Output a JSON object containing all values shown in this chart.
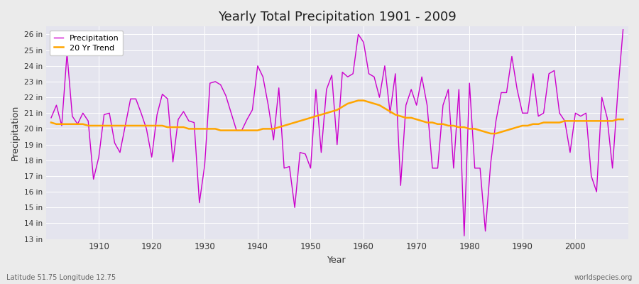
{
  "title": "Yearly Total Precipitation 1901 - 2009",
  "xlabel": "Year",
  "ylabel": "Precipitation",
  "fig_facecolor": "#f0f0f0",
  "plot_facecolor": "#e8e8f0",
  "precip_color": "#cc00cc",
  "trend_color": "#ffa500",
  "years": [
    1901,
    1902,
    1903,
    1904,
    1905,
    1906,
    1907,
    1908,
    1909,
    1910,
    1911,
    1912,
    1913,
    1914,
    1915,
    1916,
    1917,
    1918,
    1919,
    1920,
    1921,
    1922,
    1923,
    1924,
    1925,
    1926,
    1927,
    1928,
    1929,
    1930,
    1931,
    1932,
    1933,
    1934,
    1935,
    1936,
    1937,
    1938,
    1939,
    1940,
    1941,
    1942,
    1943,
    1944,
    1945,
    1946,
    1947,
    1948,
    1949,
    1950,
    1951,
    1952,
    1953,
    1954,
    1955,
    1956,
    1957,
    1958,
    1959,
    1960,
    1961,
    1962,
    1963,
    1964,
    1965,
    1966,
    1967,
    1968,
    1969,
    1970,
    1971,
    1972,
    1973,
    1974,
    1975,
    1976,
    1977,
    1978,
    1979,
    1980,
    1981,
    1982,
    1983,
    1984,
    1985,
    1986,
    1987,
    1988,
    1989,
    1990,
    1991,
    1992,
    1993,
    1994,
    1995,
    1996,
    1997,
    1998,
    1999,
    2000,
    2001,
    2002,
    2003,
    2004,
    2005,
    2006,
    2007,
    2008,
    2009
  ],
  "precip": [
    20.7,
    21.5,
    20.2,
    24.8,
    20.8,
    20.3,
    21.0,
    20.5,
    16.8,
    18.2,
    20.9,
    21.0,
    19.1,
    18.5,
    20.2,
    21.9,
    21.9,
    21.0,
    20.0,
    18.2,
    20.9,
    22.2,
    21.9,
    17.9,
    20.6,
    21.1,
    20.5,
    20.4,
    15.3,
    17.7,
    22.9,
    23.0,
    22.8,
    22.1,
    21.0,
    19.9,
    19.9,
    20.6,
    21.2,
    24.0,
    23.3,
    21.5,
    19.3,
    22.6,
    17.5,
    17.6,
    15.0,
    18.5,
    18.4,
    17.5,
    22.5,
    18.5,
    22.5,
    23.4,
    19.0,
    23.6,
    23.3,
    23.5,
    26.0,
    25.5,
    23.5,
    23.3,
    22.0,
    24.0,
    21.0,
    23.5,
    16.4,
    21.5,
    22.5,
    21.5,
    23.3,
    21.5,
    17.5,
    17.5,
    21.5,
    22.5,
    17.5,
    22.5,
    13.2,
    22.9,
    17.5,
    17.5,
    13.5,
    17.8,
    20.5,
    22.3,
    22.3,
    24.6,
    22.5,
    21.0,
    21.0,
    23.5,
    20.8,
    21.0,
    23.5,
    23.7,
    21.0,
    20.5,
    18.5,
    21.0,
    20.8,
    21.0,
    17.0,
    16.0,
    22.0,
    20.7,
    17.5,
    22.3,
    26.3
  ],
  "trend": [
    20.4,
    20.3,
    20.3,
    20.3,
    20.3,
    20.3,
    20.3,
    20.2,
    20.2,
    20.2,
    20.2,
    20.2,
    20.2,
    20.2,
    20.2,
    20.2,
    20.2,
    20.2,
    20.2,
    20.2,
    20.2,
    20.2,
    20.1,
    20.1,
    20.1,
    20.1,
    20.0,
    20.0,
    20.0,
    20.0,
    20.0,
    20.0,
    19.9,
    19.9,
    19.9,
    19.9,
    19.9,
    19.9,
    19.9,
    19.9,
    20.0,
    20.0,
    20.0,
    20.1,
    20.2,
    20.3,
    20.4,
    20.5,
    20.6,
    20.7,
    20.8,
    20.9,
    21.0,
    21.1,
    21.2,
    21.4,
    21.6,
    21.7,
    21.8,
    21.8,
    21.7,
    21.6,
    21.5,
    21.3,
    21.1,
    20.9,
    20.8,
    20.7,
    20.7,
    20.6,
    20.5,
    20.4,
    20.4,
    20.3,
    20.3,
    20.2,
    20.2,
    20.1,
    20.1,
    20.0,
    20.0,
    19.9,
    19.8,
    19.7,
    19.7,
    19.8,
    19.9,
    20.0,
    20.1,
    20.2,
    20.2,
    20.3,
    20.3,
    20.4,
    20.4,
    20.4,
    20.4,
    20.5,
    20.5,
    20.5,
    20.5,
    20.5,
    20.5,
    20.5,
    20.5,
    20.5,
    20.5,
    20.6,
    20.6
  ],
  "ylim": [
    13,
    26.5
  ],
  "yticks": [
    13,
    14,
    15,
    16,
    17,
    18,
    19,
    20,
    21,
    22,
    23,
    24,
    25,
    26
  ],
  "ytick_labels": [
    "13 in",
    "14 in",
    "15 in",
    "16 in",
    "17 in",
    "18 in",
    "19 in",
    "20 in",
    "21 in",
    "22 in",
    "23 in",
    "24 in",
    "25 in",
    "26 in"
  ],
  "xlim": [
    1900,
    2010
  ],
  "xticks": [
    1910,
    1920,
    1930,
    1940,
    1950,
    1960,
    1970,
    1980,
    1990,
    2000
  ],
  "footer_left": "Latitude 51.75 Longitude 12.75",
  "footer_right": "worldspecies.org",
  "legend_labels": [
    "Precipitation",
    "20 Yr Trend"
  ]
}
